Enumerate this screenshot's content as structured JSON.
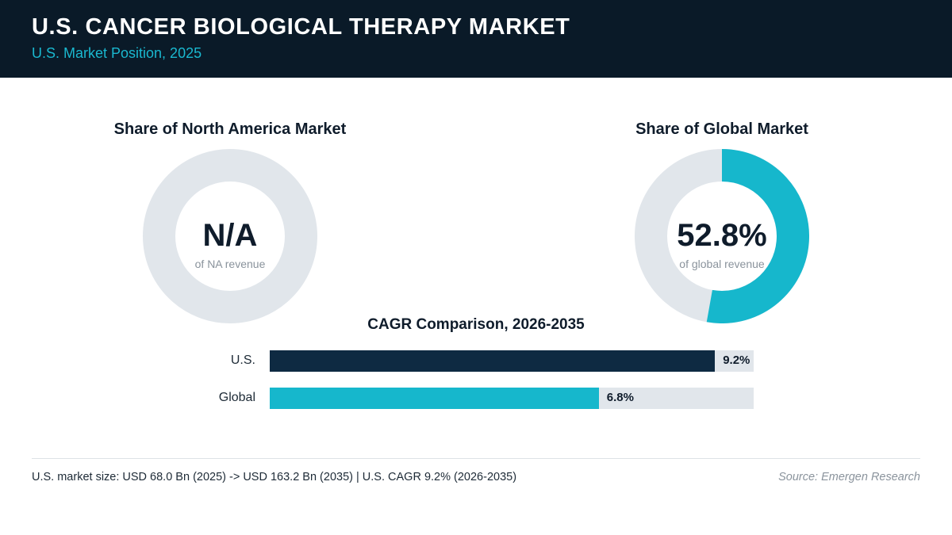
{
  "header": {
    "title": "U.S. CANCER BIOLOGICAL THERAPY MARKET",
    "subtitle": "U.S. Market Position, 2025"
  },
  "colors": {
    "header_bg": "#0a1a28",
    "accent": "#16b7cc",
    "navy": "#0e2a42",
    "track": "#e1e6eb"
  },
  "chart_data": [
    {
      "type": "pie",
      "title": "Share of North America Market",
      "value": null,
      "value_label": "N/A",
      "caption": "of NA revenue"
    },
    {
      "type": "pie",
      "title": "Share of Global Market",
      "value": 52.8,
      "value_label": "52.8%",
      "caption": "of global revenue"
    },
    {
      "type": "bar",
      "title": "CAGR Comparison, 2026-2035",
      "orientation": "horizontal",
      "categories": [
        "U.S.",
        "Global"
      ],
      "values": [
        9.2,
        6.8
      ],
      "value_labels": [
        "9.2%",
        "6.8%"
      ],
      "colors": [
        "#0e2a42",
        "#16b7cc"
      ],
      "xlim": [
        0,
        10
      ]
    }
  ],
  "footer": {
    "note": "U.S. market size: USD 68.0 Bn (2025) -> USD 163.2 Bn (2035)  |  U.S. CAGR 9.2% (2026-2035)",
    "source": "Source: Emergen Research"
  }
}
